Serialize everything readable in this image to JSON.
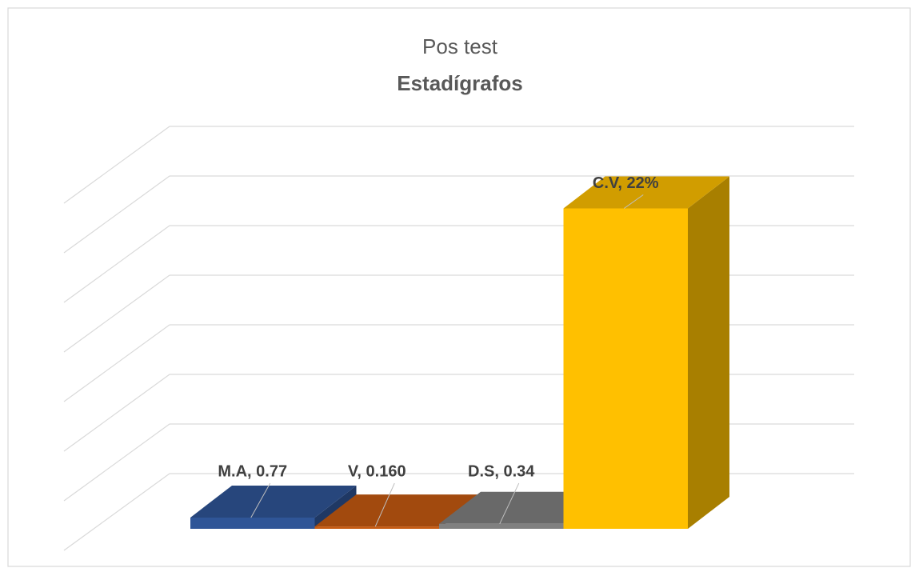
{
  "chart_data": {
    "type": "bar3d",
    "title": "Pos test",
    "subtitle": "Estadígrafos",
    "categories": [
      "M.A",
      "V",
      "D.S",
      "C.V"
    ],
    "values": [
      0.77,
      0.16,
      0.34,
      22
    ],
    "value_labels": [
      "M.A, 0.77",
      "V, 0.160",
      "D.S, 0.34",
      "C.V, 22%"
    ],
    "colors": [
      "#2f5597",
      "#c55a11",
      "#808080",
      "#ffc000"
    ],
    "ylim": [
      0,
      24.5
    ],
    "yticks": [
      0,
      3.5,
      7,
      10.5,
      14,
      17.5,
      21,
      24.5
    ],
    "grid": true
  }
}
